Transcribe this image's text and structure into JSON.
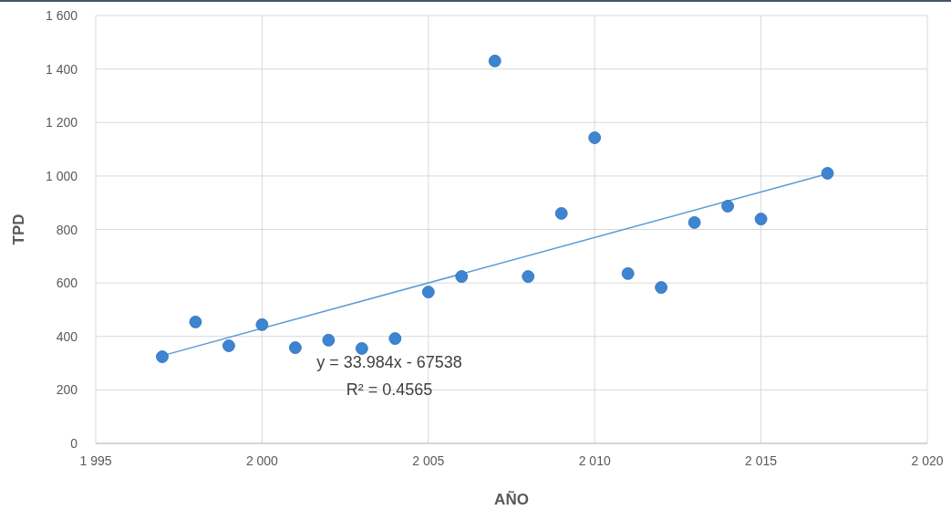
{
  "chart_data": {
    "type": "scatter",
    "xlabel": "AÑO",
    "ylabel": "TPD",
    "xlim": [
      1995,
      2020
    ],
    "xticks": [
      {
        "value": 1995,
        "label": "1 995"
      },
      {
        "value": 2000,
        "label": "2 000"
      },
      {
        "value": 2005,
        "label": "2 005"
      },
      {
        "value": 2010,
        "label": "2 010"
      },
      {
        "value": 2015,
        "label": "2 015"
      },
      {
        "value": 2020,
        "label": "2 020"
      }
    ],
    "ylim": [
      0,
      1600
    ],
    "yticks": [
      0,
      200,
      400,
      600,
      800,
      {
        "value": 1000,
        "label": "1 000"
      },
      {
        "value": 1200,
        "label": "1 200"
      },
      {
        "value": 1400,
        "label": "1 400"
      },
      {
        "value": 1600,
        "label": "1 600"
      }
    ],
    "grid": true,
    "series": [
      {
        "marker": "circle",
        "color": "#3d85d1",
        "x": [
          1997,
          1998,
          1999,
          2000,
          2001,
          2002,
          2003,
          2004,
          2005,
          2006,
          2007,
          2008,
          2009,
          2010,
          2011,
          2012,
          2013,
          2014,
          2015,
          2017
        ],
        "values": [
          324,
          454,
          365,
          444,
          358,
          386,
          355,
          392,
          566,
          624,
          1430,
          624,
          860,
          1143,
          635,
          583,
          826,
          887,
          839,
          1010
        ]
      },
      {
        "type": "line",
        "marker": "none",
        "color": "#5b9bd5",
        "x": [
          1997,
          2017
        ],
        "values": [
          328,
          1008
        ]
      }
    ],
    "annotations": [
      "y = 33.984x - 67538",
      "R² = 0.4565"
    ]
  }
}
